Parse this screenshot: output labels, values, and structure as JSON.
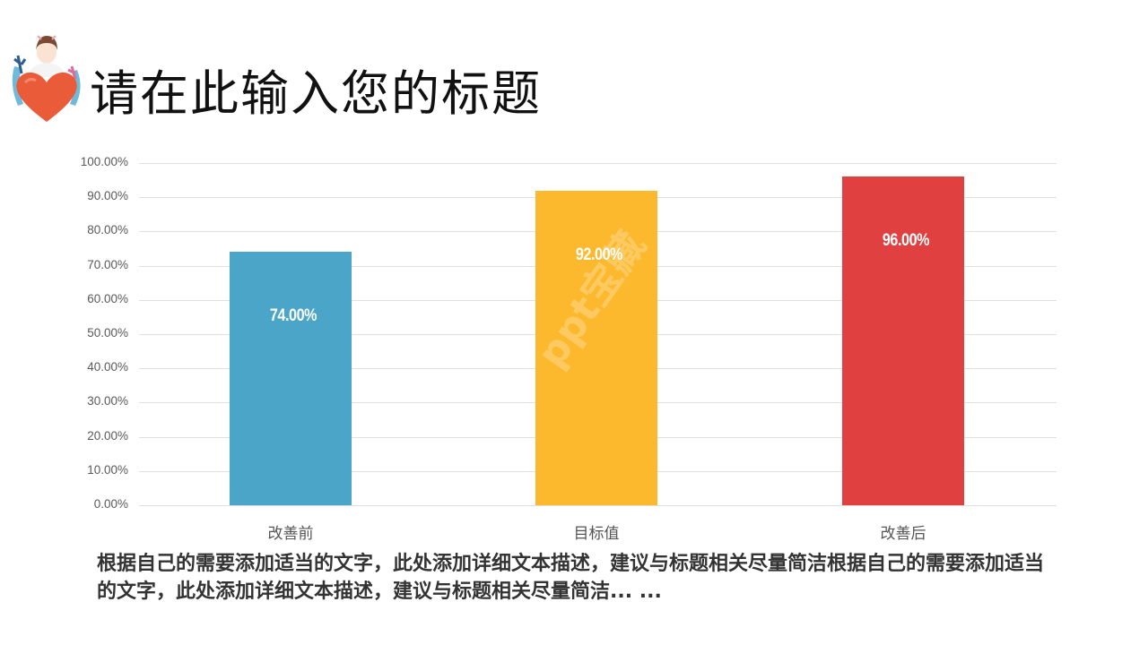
{
  "slide": {
    "title": "请在此输入您的标题",
    "description": "根据自己的需要添加适当的文字，此处添加详细文本描述，建议与标题相关尽量简洁根据自己的需要添加适当的文字，此处添加详细文本描述，建议与标题相关尽量简洁... ...",
    "logo_icon": "nurse-holding-heart-illustration",
    "watermark": "ppt宝藏"
  },
  "chart_data": {
    "type": "bar",
    "title": "",
    "xlabel": "",
    "ylabel": "",
    "categories": [
      "改善前",
      "目标值",
      "改善后"
    ],
    "values": [
      74.0,
      92.0,
      96.0
    ],
    "value_labels": [
      "74.00%",
      "92.00%",
      "96.00%"
    ],
    "colors": [
      "#4BA5C8",
      "#FDB92E",
      "#E04140"
    ],
    "ylim": [
      0,
      100
    ],
    "yticks": [
      "0.00%",
      "10.00%",
      "20.00%",
      "30.00%",
      "40.00%",
      "50.00%",
      "60.00%",
      "70.00%",
      "80.00%",
      "90.00%",
      "100.00%"
    ],
    "grid": true,
    "legend": "none"
  }
}
